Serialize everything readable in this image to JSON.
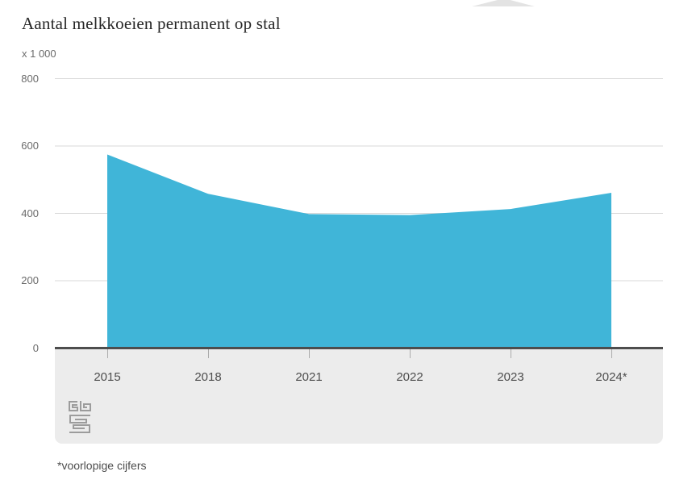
{
  "header": {
    "title": "Aantal melkkoeien permanent op stal",
    "unit_label": "x 1 000"
  },
  "chart_data": {
    "type": "area",
    "title": "Aantal melkkoeien permanent op stal",
    "categories": [
      "2015",
      "2018",
      "2021",
      "2022",
      "2023",
      "2024*"
    ],
    "values": [
      575,
      458,
      398,
      395,
      413,
      461
    ],
    "series": [
      {
        "name": "Aantal melkkoeien permanent op stal (x 1 000)",
        "values": [
          575,
          458,
          398,
          395,
          413,
          461
        ]
      }
    ],
    "xlabel": "",
    "ylabel": "x 1 000",
    "ylim": [
      0,
      800
    ],
    "yticks": [
      0,
      200,
      400,
      600,
      800
    ],
    "grid": true,
    "legend": false
  },
  "footer": {
    "footnote": "*voorlopige cijfers",
    "logo": "cbs-logo"
  },
  "colors": {
    "area": "#40b5d8",
    "axis": "#4d4d4d",
    "grid": "#d9d9d9",
    "panel": "#ececec",
    "x_label": "#4d4d4d",
    "y_label": "#6b6b6b",
    "tick": "#ababab",
    "triangle": "#e3e3e3",
    "logo": "#9c9c9c",
    "title": "#262626"
  }
}
